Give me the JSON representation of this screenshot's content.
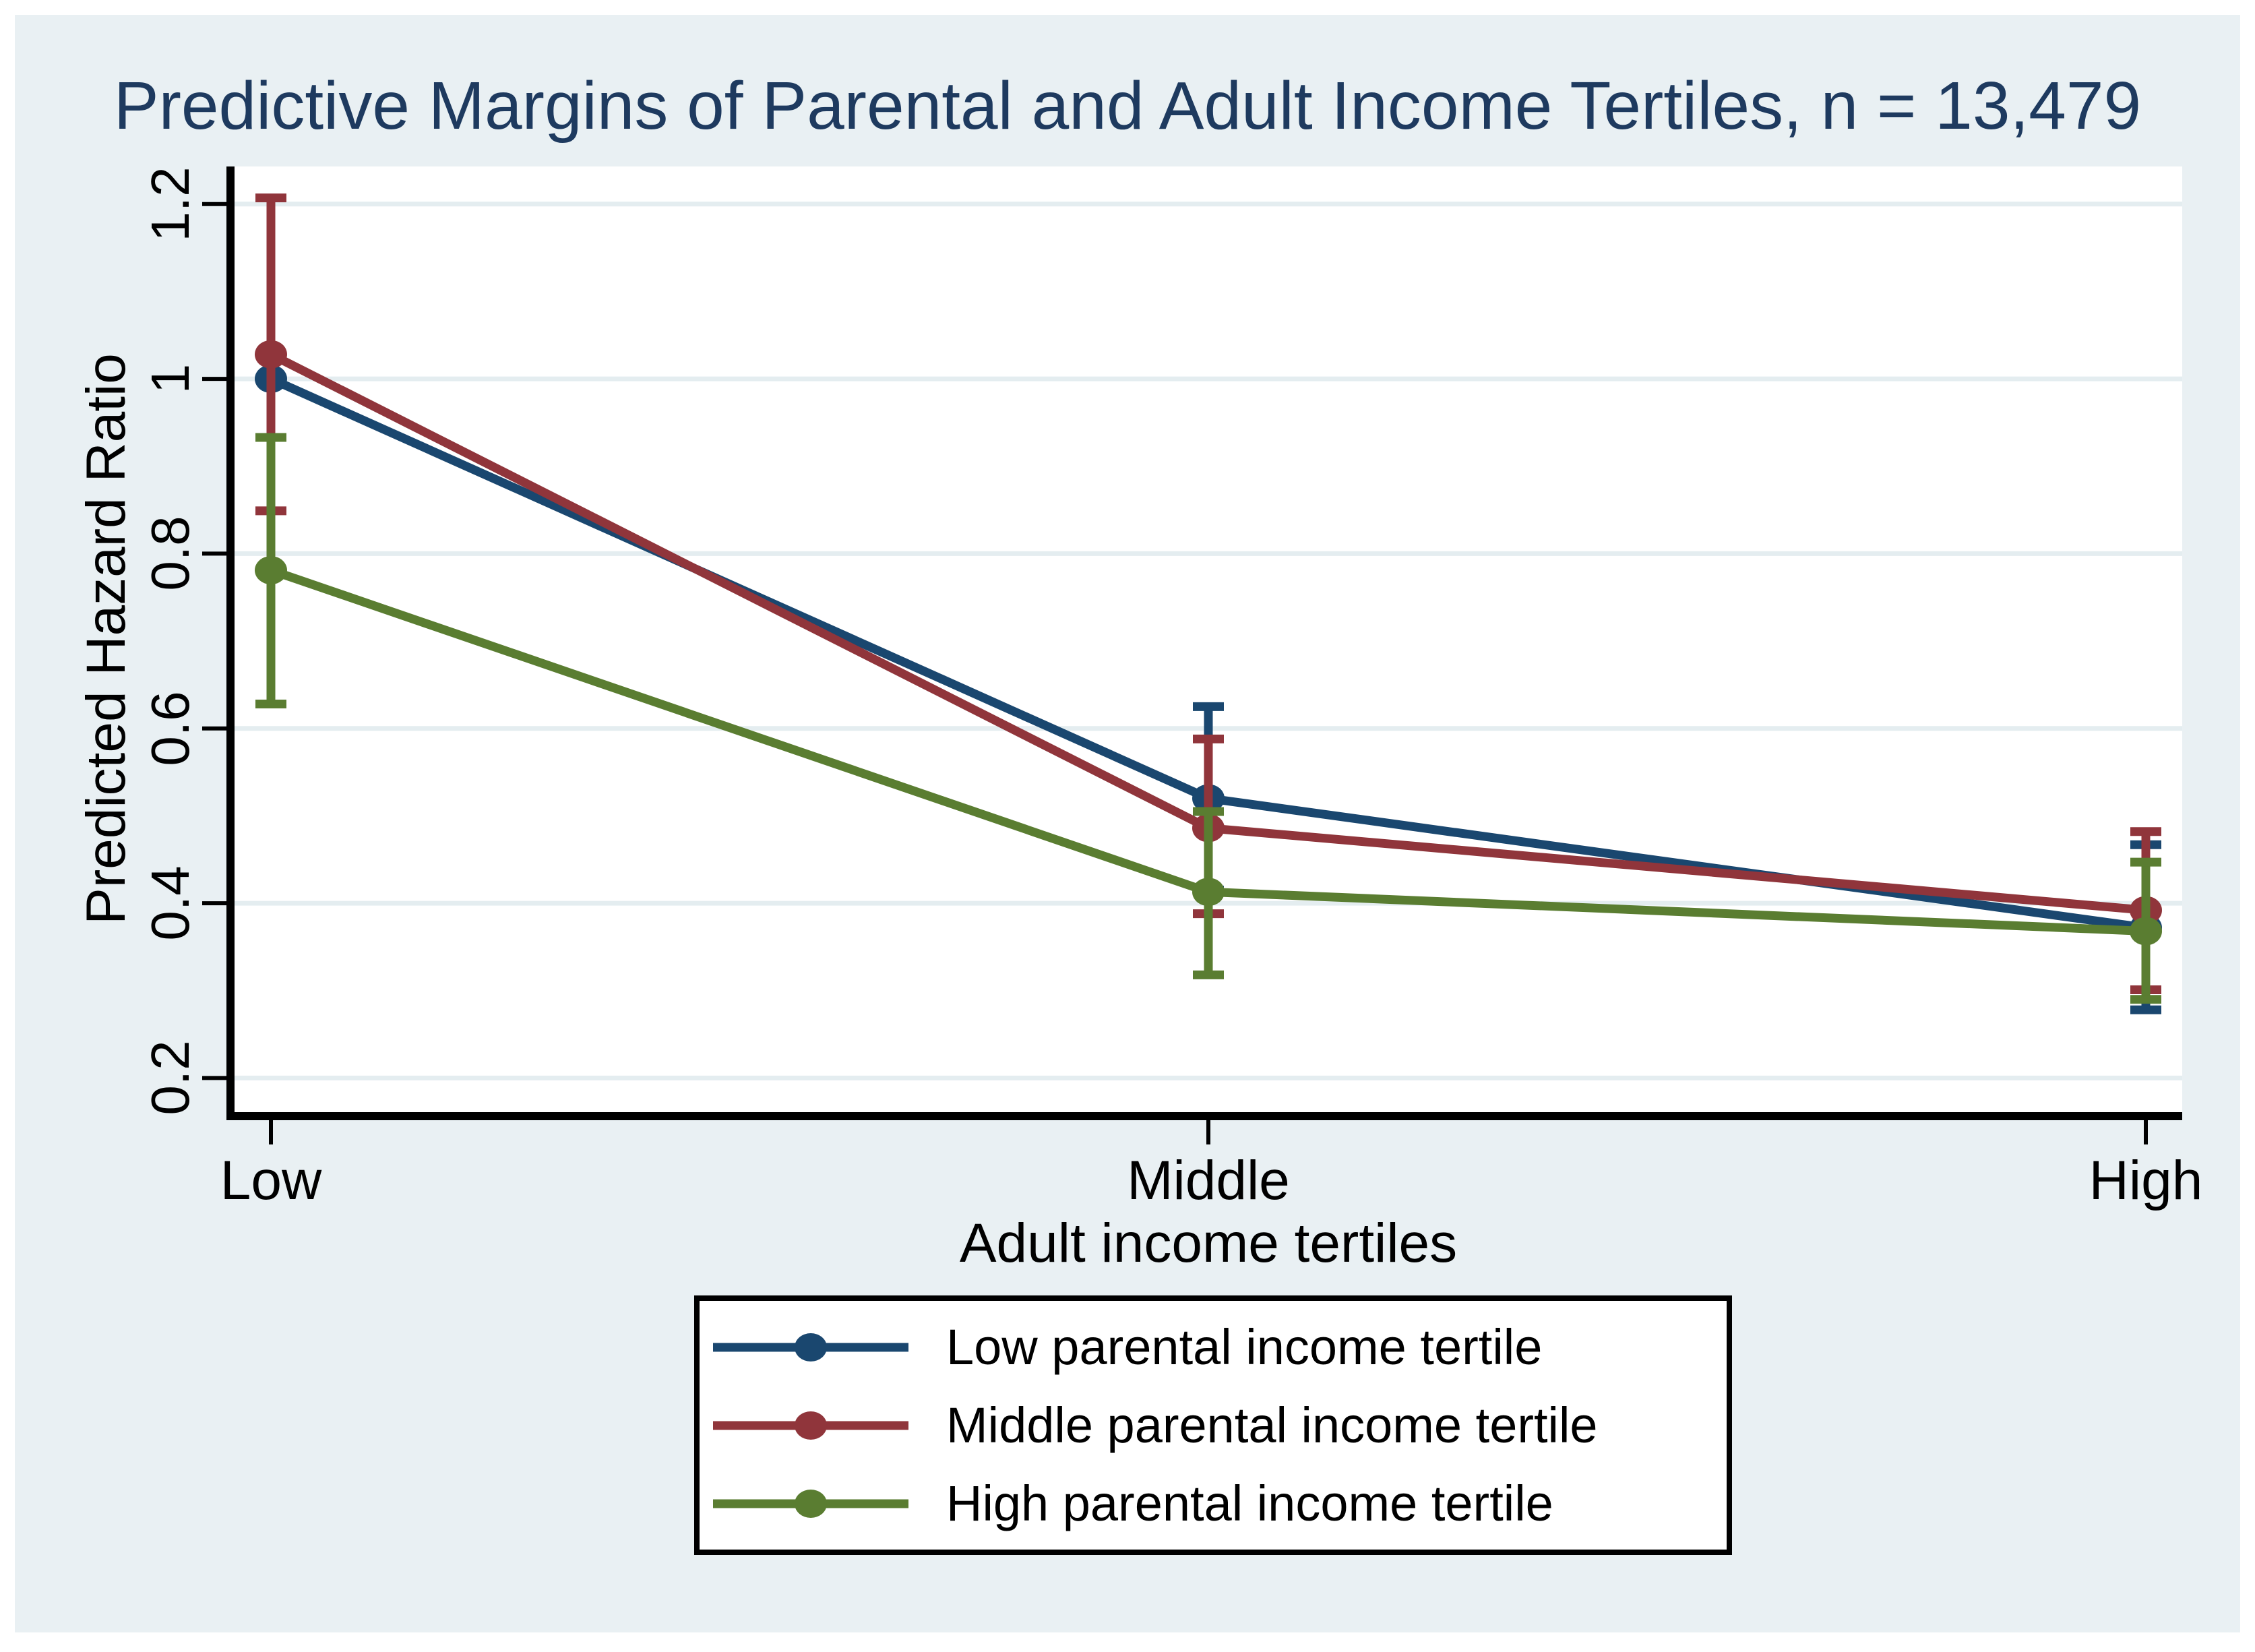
{
  "title": "Predictive Margins of Parental and Adult Income Tertiles, n = 13,479",
  "chart_data": {
    "type": "line",
    "title": "Predictive Margins of Parental and Adult Income Tertiles, n = 13,479",
    "categories": [
      "Low",
      "Middle",
      "High"
    ],
    "xlabel": "Adult income tertiles",
    "ylabel": "Predicted Hazard Ratio",
    "y_ticks": [
      0.2,
      0.4,
      0.6,
      0.8,
      1,
      1.2
    ],
    "y_tick_labels": [
      "0.2",
      "0.4",
      "0.6",
      "0.8",
      "1",
      "1.2"
    ],
    "ylim": [
      0.161,
      1.243
    ],
    "grid": true,
    "legend_position": "bottom",
    "series": [
      {
        "name": "Low parental income tertile",
        "color": "#1a476f",
        "values": [
          1.0,
          0.52,
          0.372
        ],
        "ci_low": [
          null,
          0.415,
          0.278
        ],
        "ci_high": [
          null,
          0.625,
          0.467
        ]
      },
      {
        "name": "Middle parental income tertile",
        "color": "#90353b",
        "values": [
          1.028,
          0.486,
          0.392
        ],
        "ci_low": [
          0.849,
          0.388,
          0.301
        ],
        "ci_high": [
          1.207,
          0.588,
          0.482
        ]
      },
      {
        "name": "High parental income tertile",
        "color": "#5a7d31",
        "values": [
          0.781,
          0.413,
          0.368
        ],
        "ci_low": [
          0.628,
          0.318,
          0.29
        ],
        "ci_high": [
          0.933,
          0.505,
          0.447
        ]
      }
    ]
  }
}
